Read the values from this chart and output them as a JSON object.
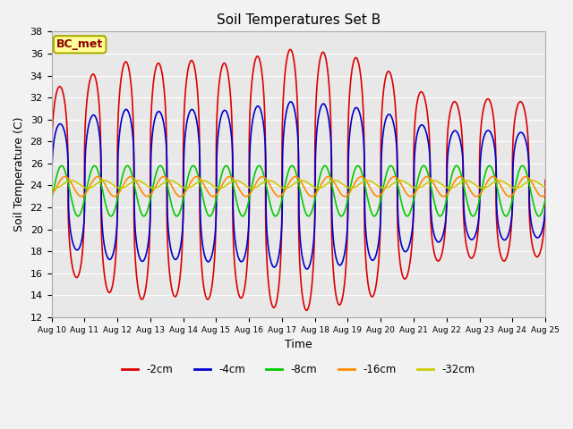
{
  "title": "Soil Temperatures Set B",
  "xlabel": "Time",
  "ylabel": "Soil Temperature (C)",
  "ylim": [
    12,
    38
  ],
  "xlim": [
    0,
    15
  ],
  "x_tick_labels": [
    "Aug 10",
    "Aug 11",
    "Aug 12",
    "Aug 13",
    "Aug 14",
    "Aug 15",
    "Aug 16",
    "Aug 17",
    "Aug 18",
    "Aug 19",
    "Aug 20",
    "Aug 21",
    "Aug 22",
    "Aug 23",
    "Aug 24",
    "Aug 25"
  ],
  "series": [
    {
      "label": "-2cm",
      "color": "#dd0000",
      "amplitude": 10.0,
      "mean": 24.5,
      "phase": 0.35,
      "amp_envelope": [
        0.85,
        1.0,
        1.1,
        1.05,
        1.1,
        1.05,
        1.15,
        1.2,
        1.15,
        1.1,
        0.95,
        0.75,
        0.7,
        0.75,
        0.7
      ],
      "phase_shift": 0.0
    },
    {
      "label": "-4cm",
      "color": "#0000cc",
      "amplitude": 7.0,
      "mean": 24.0,
      "phase": 0.35,
      "amp_envelope": [
        0.8,
        0.95,
        1.0,
        0.95,
        1.0,
        0.97,
        1.05,
        1.1,
        1.05,
        1.0,
        0.9,
        0.75,
        0.7,
        0.72,
        0.68
      ],
      "phase_shift": 0.08
    },
    {
      "label": "-8cm",
      "color": "#00cc00",
      "amplitude": 2.3,
      "mean": 23.5,
      "phase": 0.35,
      "amp_envelope": [
        1.0,
        1.0,
        1.0,
        1.0,
        1.0,
        1.0,
        1.0,
        1.0,
        1.0,
        1.0,
        1.0,
        1.0,
        1.0,
        1.0,
        1.0
      ],
      "phase_shift": 0.35
    },
    {
      "label": "-16cm",
      "color": "#ff8c00",
      "amplitude": 0.9,
      "mean": 23.9,
      "phase": 0.35,
      "amp_envelope": [
        1.0,
        1.0,
        1.0,
        1.0,
        1.0,
        1.0,
        1.0,
        1.0,
        1.0,
        1.0,
        1.0,
        1.0,
        1.0,
        1.0,
        1.0
      ],
      "phase_shift": 1.0
    },
    {
      "label": "-32cm",
      "color": "#cccc00",
      "amplitude": 0.35,
      "mean": 24.1,
      "phase": 0.35,
      "amp_envelope": [
        1.0,
        1.0,
        1.0,
        1.0,
        1.0,
        1.0,
        1.0,
        1.0,
        1.0,
        1.0,
        1.0,
        1.0,
        1.0,
        1.0,
        1.0
      ],
      "phase_shift": 2.2
    }
  ],
  "legend_label": "BC_met",
  "legend_box_facecolor": "#ffff99",
  "legend_box_edgecolor": "#aaaa00",
  "plot_bg_color": "#e8e8e8",
  "grid_color": "#ffffff",
  "fig_bg_color": "#f2f2f2",
  "linewidth": 1.2,
  "sharpness": 3.0
}
